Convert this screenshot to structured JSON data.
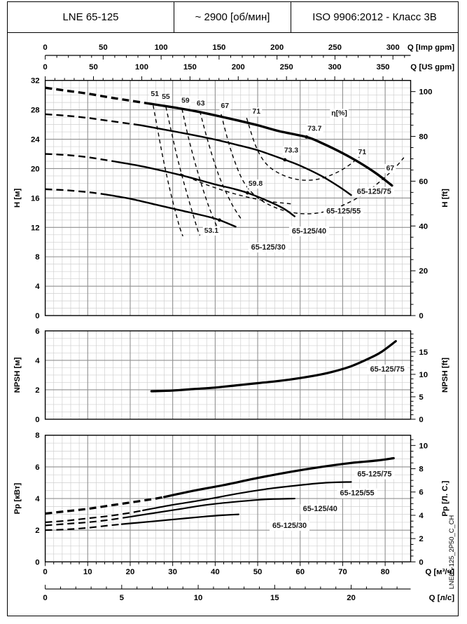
{
  "header": {
    "model": "LNE 65-125",
    "speed": "~ 2900 [об/мин]",
    "standard": "ISO 9906:2012 - Класс 3В"
  },
  "side_label": "LNE65-125_2P50_C_CH",
  "x_axes": {
    "m3h": {
      "label": "Q [м³/ч]",
      "tick_labels": [
        0,
        10,
        20,
        30,
        40,
        50,
        60,
        70,
        80
      ],
      "minor_step": 2,
      "to_m3h": 1,
      "max": 86
    },
    "ls": {
      "label": "Q [л/с]",
      "tick_labels": [
        0,
        5,
        10,
        15,
        20
      ],
      "minor_step": 1,
      "to_m3h": 3.6
    },
    "imp_gpm": {
      "label": "Q [Imp gpm]",
      "tick_labels": [
        0,
        50,
        100,
        150,
        200,
        250,
        300
      ],
      "minor_step": 10,
      "to_m3h": 0.272766
    },
    "us_gpm": {
      "label": "Q [US gpm]",
      "tick_labels": [
        0,
        50,
        100,
        150,
        200,
        250,
        300,
        350
      ],
      "minor_step": 10,
      "to_m3h": 0.227124
    }
  },
  "chart_data": [
    {
      "id": "head",
      "type": "line",
      "y_left": {
        "label": "H [м]",
        "ticks": [
          0,
          4,
          8,
          12,
          16,
          20,
          24,
          28,
          32
        ],
        "minor": 1,
        "max": 32
      },
      "y_right": {
        "label": "H [ft]",
        "ticks": [
          0,
          20,
          40,
          60,
          80,
          100
        ],
        "minor": 5,
        "to_left_unit": 0.3048
      },
      "series": [
        {
          "name": "65-125/75",
          "dash_until": 25,
          "width": 3.4,
          "points": [
            [
              0,
              31.0
            ],
            [
              5,
              30.6
            ],
            [
              10,
              30.2
            ],
            [
              15,
              29.7
            ],
            [
              20,
              29.25
            ],
            [
              25,
              28.8
            ],
            [
              30,
              28.35
            ],
            [
              35,
              27.85
            ],
            [
              40,
              27.25
            ],
            [
              45,
              26.6
            ],
            [
              50,
              25.9
            ],
            [
              55,
              25.1
            ],
            [
              61.5,
              24.3
            ],
            [
              65,
              23.5
            ],
            [
              70,
              22.1
            ],
            [
              74,
              20.8
            ],
            [
              78,
              19.3
            ],
            [
              81.6,
              17.7
            ]
          ]
        },
        {
          "name": "65-125/55",
          "dash_until": 22.5,
          "width": 2.4,
          "points": [
            [
              0,
              27.4
            ],
            [
              5,
              27.2
            ],
            [
              10,
              26.9
            ],
            [
              15,
              26.5
            ],
            [
              20,
              26.1
            ],
            [
              22.5,
              25.9
            ],
            [
              30,
              25.1
            ],
            [
              35,
              24.55
            ],
            [
              40,
              23.95
            ],
            [
              45,
              23.25
            ],
            [
              50,
              22.5
            ],
            [
              56.4,
              21.2
            ],
            [
              60,
              20.4
            ],
            [
              65,
              19.0
            ],
            [
              69,
              17.6
            ],
            [
              72,
              16.4
            ]
          ]
        },
        {
          "name": "65-125/40",
          "dash_until": 16,
          "width": 2.4,
          "points": [
            [
              0,
              22.0
            ],
            [
              5,
              21.85
            ],
            [
              10,
              21.55
            ],
            [
              16,
              21.0
            ],
            [
              22,
              20.4
            ],
            [
              28,
              19.65
            ],
            [
              34,
              18.8
            ],
            [
              40,
              17.85
            ],
            [
              44,
              17.3
            ],
            [
              47.6,
              16.7
            ],
            [
              52,
              15.7
            ],
            [
              56,
              14.6
            ],
            [
              58.7,
              13.5
            ]
          ]
        },
        {
          "name": "65-125/30",
          "dash_until": 14,
          "width": 2.4,
          "points": [
            [
              0,
              17.2
            ],
            [
              5,
              17.05
            ],
            [
              10,
              16.8
            ],
            [
              14,
              16.5
            ],
            [
              20,
              15.9
            ],
            [
              26,
              15.1
            ],
            [
              32,
              14.3
            ],
            [
              38,
              13.5
            ],
            [
              41,
              13.0
            ],
            [
              44.8,
              12.1
            ]
          ]
        }
      ],
      "efficiency_contours": [
        {
          "name": "51",
          "points": [
            [
              25.4,
              28.6
            ],
            [
              26.4,
              25.5
            ],
            [
              27.7,
              21.5
            ],
            [
              29.4,
              17.0
            ],
            [
              31.4,
              12.5
            ],
            [
              32.4,
              10.8
            ]
          ]
        },
        {
          "name": "55",
          "points": [
            [
              28.4,
              28.4
            ],
            [
              29.7,
              25.0
            ],
            [
              31.3,
              21.0
            ],
            [
              33.4,
              16.5
            ],
            [
              35.7,
              12.0
            ],
            [
              36.4,
              10.9
            ]
          ]
        },
        {
          "name": "59",
          "points": [
            [
              32.2,
              28.1
            ],
            [
              33.8,
              24.0
            ],
            [
              35.9,
              19.5
            ],
            [
              38.4,
              15.0
            ],
            [
              40.7,
              11.7
            ]
          ]
        },
        {
          "name": "63",
          "points": [
            [
              36.4,
              27.8
            ],
            [
              38.4,
              23.5
            ],
            [
              40.9,
              19.0
            ],
            [
              43.9,
              15.2
            ],
            [
              46.4,
              12.9
            ]
          ]
        },
        {
          "name": "67",
          "points": [
            [
              41.4,
              27.4
            ],
            [
              43.7,
              22.5
            ],
            [
              46.6,
              18.3
            ],
            [
              50.1,
              16.0
            ],
            [
              54.6,
              14.6
            ],
            [
              59.6,
              13.9
            ],
            [
              64.6,
              14.0
            ],
            [
              69.6,
              14.9
            ],
            [
              74.6,
              16.4
            ],
            [
              79.1,
              18.4
            ],
            [
              82.6,
              20.3
            ],
            [
              84.4,
              21.5
            ]
          ]
        },
        {
          "name": "71",
          "points": [
            [
              47.4,
              26.9
            ],
            [
              49.6,
              23.0
            ],
            [
              52.1,
              20.6
            ],
            [
              55.6,
              19.2
            ],
            [
              59.6,
              18.5
            ],
            [
              63.6,
              18.5
            ],
            [
              67.6,
              19.2
            ],
            [
              71.1,
              20.3
            ],
            [
              74.1,
              21.7
            ],
            [
              75.9,
              22.8
            ]
          ]
        },
        {
          "name": "aux",
          "points": [
            [
              31.8,
              19.3
            ],
            [
              38.0,
              17.8
            ],
            [
              45.0,
              16.5
            ],
            [
              52.0,
              15.6
            ],
            [
              58.0,
              15.2
            ]
          ]
        }
      ],
      "efficiency_labels": [
        {
          "text": "51",
          "q": 25.8,
          "v": 30.2
        },
        {
          "text": "55",
          "q": 28.4,
          "v": 29.8
        },
        {
          "text": "59",
          "q": 33.0,
          "v": 29.3
        },
        {
          "text": "63",
          "q": 36.6,
          "v": 28.9
        },
        {
          "text": "67",
          "q": 42.3,
          "v": 28.6
        },
        {
          "text": "71",
          "q": 49.7,
          "v": 27.8
        },
        {
          "text": "71",
          "q": 74.6,
          "v": 22.3
        },
        {
          "text": "67",
          "q": 81.2,
          "v": 20.1
        },
        {
          "text": "73.7",
          "q": 63.4,
          "v": 25.5
        },
        {
          "text": "73.3",
          "q": 57.9,
          "v": 22.5
        },
        {
          "text": "59.8",
          "q": 49.5,
          "v": 18.0
        },
        {
          "text": "53.1",
          "q": 39.1,
          "v": 11.6
        },
        {
          "text": "η[%]",
          "q": 69.2,
          "v": 27.6
        }
      ],
      "bep_points": [
        [
          61.5,
          24.3
        ],
        [
          56.4,
          21.2
        ],
        [
          47.6,
          16.7
        ],
        [
          41,
          13.0
        ]
      ],
      "curve_labels": [
        {
          "text": "65-125/75",
          "q": 77.4,
          "v": 16.9
        },
        {
          "text": "65-125/55",
          "q": 70.2,
          "v": 14.2
        },
        {
          "text": "65-125/40",
          "q": 62.1,
          "v": 11.5
        },
        {
          "text": "65-125/30",
          "q": 52.5,
          "v": 9.3
        }
      ]
    },
    {
      "id": "npsh",
      "type": "line",
      "y_left": {
        "label": "NPSH [м]",
        "ticks": [
          0,
          2,
          4,
          6
        ],
        "minor": 0.5,
        "max": 6
      },
      "y_right": {
        "label": "NPSH [ft]",
        "ticks": [
          0,
          5,
          10,
          15
        ],
        "minor": 1,
        "to_left_unit": 0.3048
      },
      "series": [
        {
          "name": "65-125/75",
          "dash_until": null,
          "width": 3.2,
          "points": [
            [
              25,
              1.9
            ],
            [
              30,
              1.95
            ],
            [
              35,
              2.05
            ],
            [
              40,
              2.15
            ],
            [
              45,
              2.3
            ],
            [
              50,
              2.45
            ],
            [
              55,
              2.6
            ],
            [
              60,
              2.8
            ],
            [
              65,
              3.05
            ],
            [
              68,
              3.25
            ],
            [
              72,
              3.6
            ],
            [
              76,
              4.1
            ],
            [
              79,
              4.55
            ],
            [
              82.5,
              5.3
            ]
          ]
        }
      ],
      "efficiency_contours": [],
      "efficiency_labels": [],
      "bep_points": [],
      "curve_labels": [
        {
          "text": "65-125/75",
          "q": 80.5,
          "v": 3.4
        }
      ]
    },
    {
      "id": "power",
      "type": "line",
      "y_left": {
        "label": "Pp [кВт]",
        "ticks": [
          0,
          2,
          4,
          6,
          8
        ],
        "minor": 0.5,
        "max": 8
      },
      "y_right": {
        "label": "Pp [Л. С.]",
        "ticks": [
          0,
          2,
          4,
          6,
          8,
          10
        ],
        "minor": 0.5,
        "to_left_unit": 0.7355
      },
      "series": [
        {
          "name": "65-125/75",
          "dash_until": 28,
          "width": 3.2,
          "points": [
            [
              0,
              3.05
            ],
            [
              5,
              3.2
            ],
            [
              10,
              3.35
            ],
            [
              15,
              3.55
            ],
            [
              20,
              3.75
            ],
            [
              25,
              3.95
            ],
            [
              28,
              4.1
            ],
            [
              35,
              4.5
            ],
            [
              42,
              4.85
            ],
            [
              50,
              5.3
            ],
            [
              58,
              5.7
            ],
            [
              65,
              6.0
            ],
            [
              72,
              6.25
            ],
            [
              78,
              6.4
            ],
            [
              82,
              6.55
            ]
          ]
        },
        {
          "name": "65-125/55",
          "dash_until": 23,
          "width": 2.2,
          "points": [
            [
              0,
              2.5
            ],
            [
              5,
              2.6
            ],
            [
              10,
              2.75
            ],
            [
              15,
              2.9
            ],
            [
              20,
              3.1
            ],
            [
              23,
              3.25
            ],
            [
              30,
              3.6
            ],
            [
              38,
              3.95
            ],
            [
              45,
              4.3
            ],
            [
              52,
              4.6
            ],
            [
              60,
              4.85
            ],
            [
              66,
              5.0
            ],
            [
              72,
              5.05
            ]
          ]
        },
        {
          "name": "65-125/40",
          "dash_until": 20,
          "width": 2.2,
          "points": [
            [
              0,
              2.3
            ],
            [
              5,
              2.4
            ],
            [
              10,
              2.5
            ],
            [
              15,
              2.65
            ],
            [
              20,
              2.85
            ],
            [
              26,
              3.1
            ],
            [
              32,
              3.35
            ],
            [
              38,
              3.6
            ],
            [
              45,
              3.8
            ],
            [
              52,
              3.95
            ],
            [
              58.7,
              4.0
            ]
          ]
        },
        {
          "name": "65-125/30",
          "dash_until": 18,
          "width": 2.2,
          "points": [
            [
              0,
              2.0
            ],
            [
              5,
              2.05
            ],
            [
              10,
              2.15
            ],
            [
              15,
              2.3
            ],
            [
              18,
              2.38
            ],
            [
              25,
              2.55
            ],
            [
              31,
              2.7
            ],
            [
              37,
              2.85
            ],
            [
              42,
              2.95
            ],
            [
              45.5,
              3.0
            ]
          ]
        }
      ],
      "efficiency_contours": [],
      "efficiency_labels": [],
      "bep_points": [],
      "curve_labels": [
        {
          "text": "65-125/75",
          "q": 77.5,
          "v": 5.55
        },
        {
          "text": "65-125/55",
          "q": 73.4,
          "v": 4.35
        },
        {
          "text": "65-125/40",
          "q": 64.7,
          "v": 3.35
        },
        {
          "text": "65-125/30",
          "q": 57.5,
          "v": 2.3
        }
      ]
    }
  ],
  "style": {
    "curve_color": "#000000",
    "major_grid": "#8f8f8f",
    "minor_grid": "#cfcfcf",
    "label_text": "#1a1a1a"
  }
}
